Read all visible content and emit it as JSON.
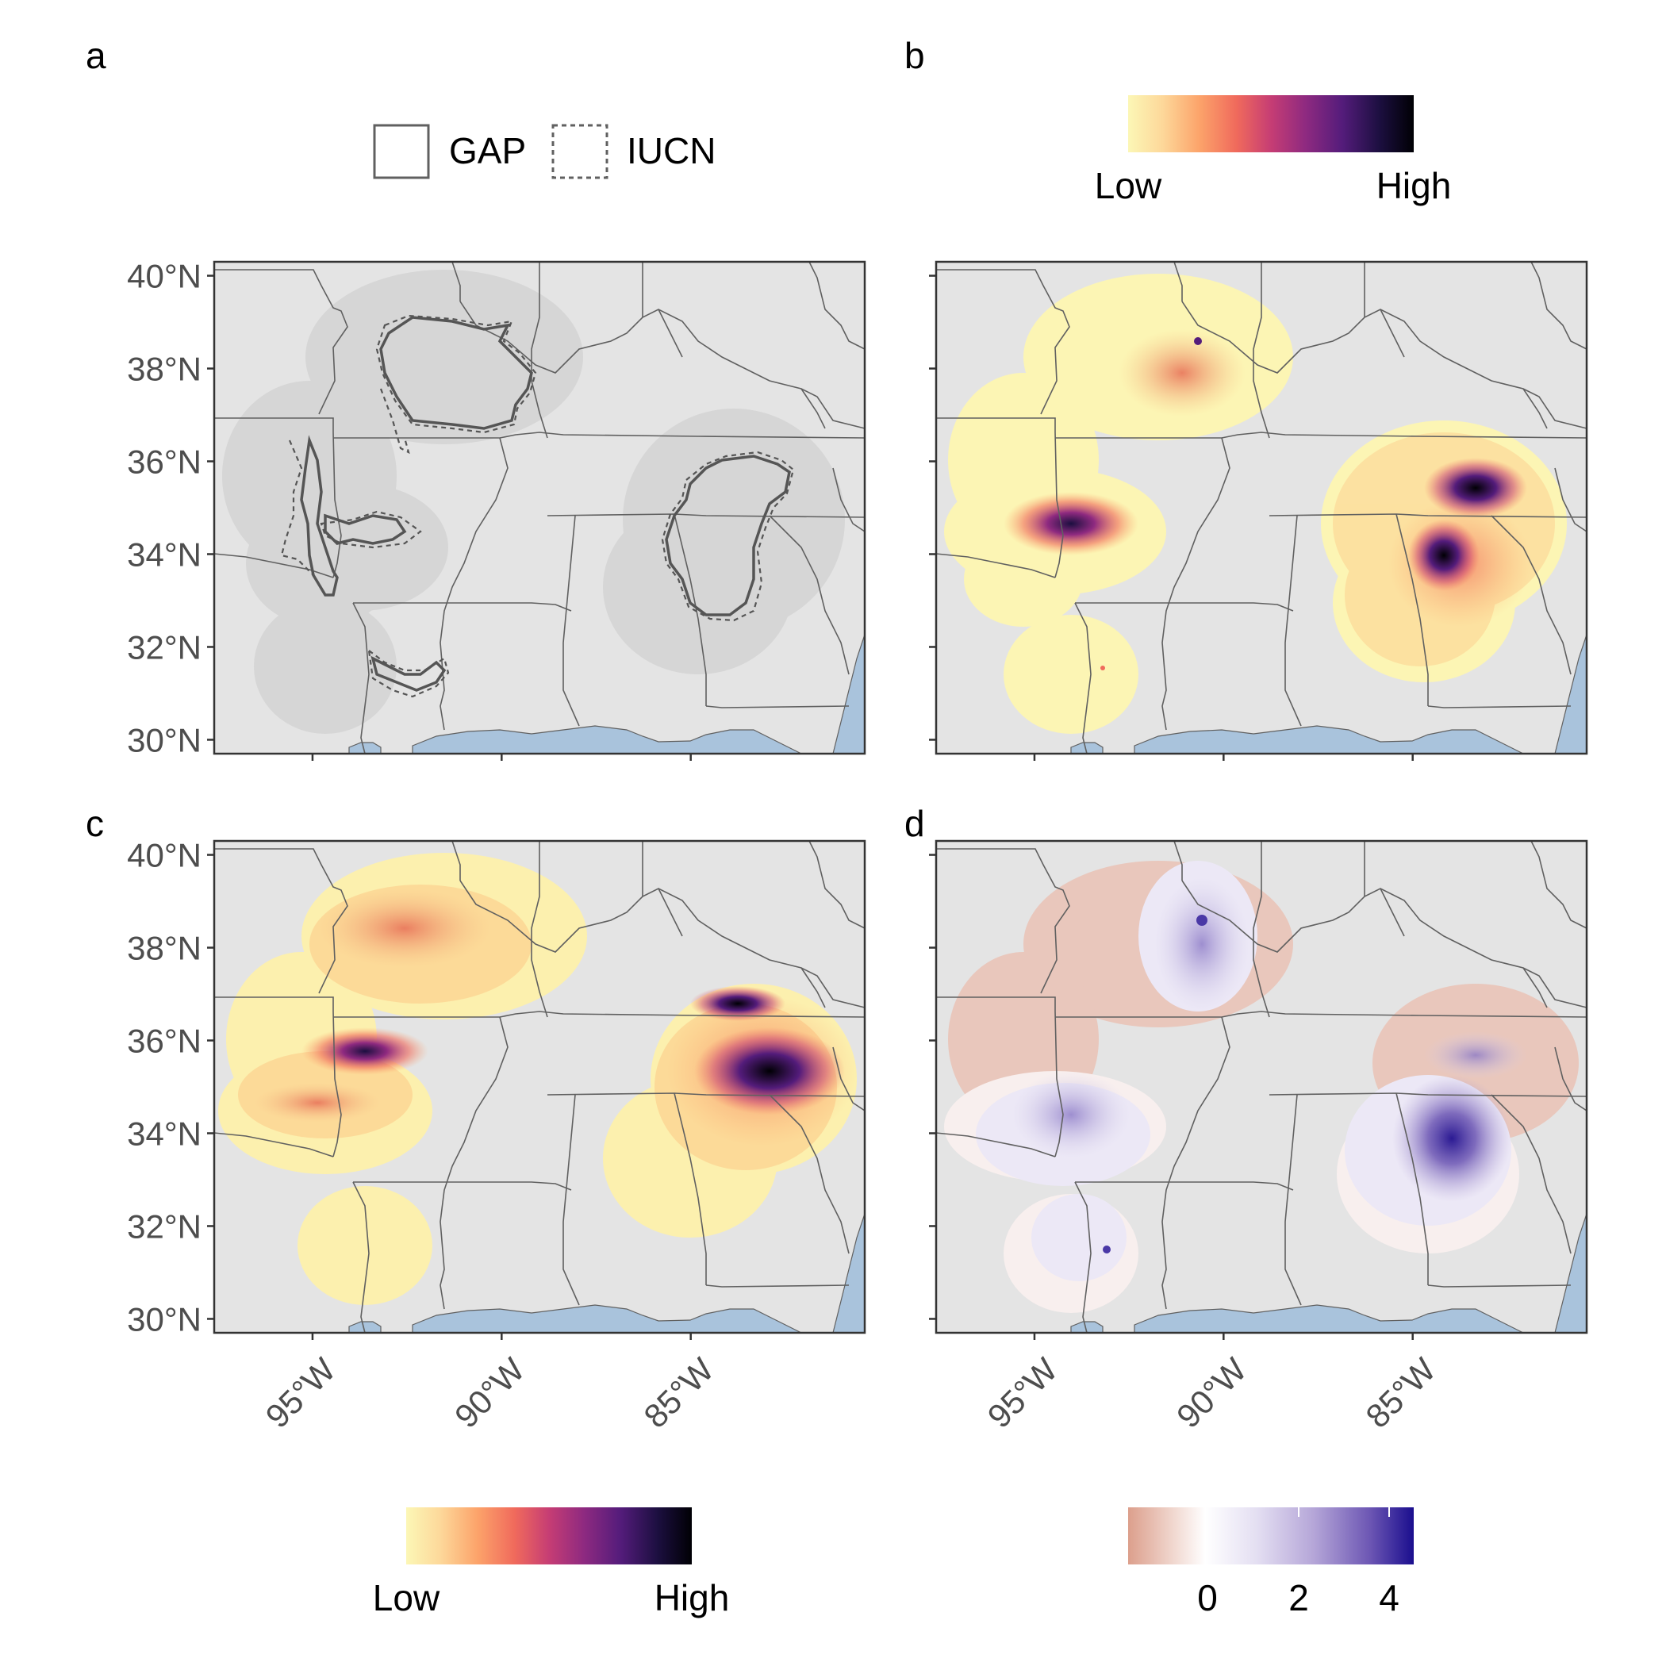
{
  "panels": {
    "a": {
      "letter": "a"
    },
    "b": {
      "letter": "b"
    },
    "c": {
      "letter": "c"
    },
    "d": {
      "letter": "d"
    }
  },
  "axis": {
    "lat_ticks": [
      "40°N",
      "38°N",
      "36°N",
      "34°N",
      "32°N",
      "30°N"
    ],
    "lat_values": [
      40,
      38,
      36,
      34,
      32,
      30
    ],
    "lon_ticks": [
      "95°W",
      "90°W",
      "85°W"
    ],
    "lon_values": [
      -95,
      -90,
      -85
    ],
    "lon_range": [
      -97.6,
      -80.4
    ],
    "lat_range": [
      29.7,
      40.3
    ]
  },
  "legend_a": {
    "solid_label": "GAP",
    "dashed_label": "IUCN"
  },
  "legend_b": {
    "low": "Low",
    "high": "High"
  },
  "legend_c": {
    "low": "Low",
    "high": "High"
  },
  "legend_d": {
    "ticks": [
      "0",
      "2",
      "4"
    ]
  },
  "colors": {
    "land": "#e4e4e4",
    "water": "#a9c3dc",
    "border": "#606060",
    "range_fill": "#d5d5d5",
    "magma": [
      "#fcf7b6",
      "#fdd89a",
      "#fca36a",
      "#f06a5c",
      "#c63d74",
      "#8f2a80",
      "#541c7b",
      "#1c0f40",
      "#000004"
    ],
    "diverging": [
      "#dc9f8c",
      "#f6e6e1",
      "#ffffff",
      "#e4dff2",
      "#b5a6d8",
      "#6b55b3",
      "#1a0e8e"
    ]
  }
}
